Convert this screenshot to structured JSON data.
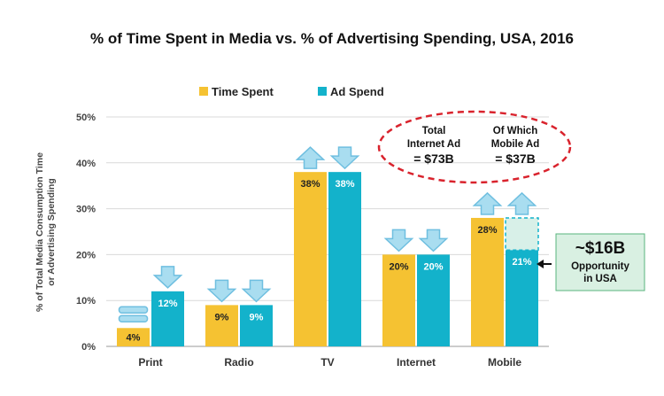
{
  "chart_data": {
    "type": "bar",
    "title": "% of Time Spent in Media vs. % of Advertising Spending, USA, 2016",
    "ylabel_lines": [
      "% of Total Media Consumption Time",
      "or Advertising Spending"
    ],
    "xlabel": "",
    "categories": [
      "Print",
      "Radio",
      "TV",
      "Internet",
      "Mobile"
    ],
    "series": [
      {
        "name": "Time Spent",
        "values": [
          4,
          9,
          38,
          20,
          28
        ],
        "labels": [
          "4%",
          "9%",
          "38%",
          "20%",
          "28%"
        ],
        "color": "#F5C232"
      },
      {
        "name": "Ad Spend",
        "values": [
          12,
          9,
          38,
          20,
          21
        ],
        "labels": [
          "12%",
          "9%",
          "38%",
          "20%",
          "21%"
        ],
        "color": "#13B2CB"
      }
    ],
    "ylim": [
      0,
      50
    ],
    "yticks": [
      0,
      10,
      20,
      30,
      40,
      50
    ],
    "ytick_labels": [
      "0%",
      "10%",
      "20%",
      "30%",
      "40%",
      "50%"
    ],
    "grid": true,
    "legend_position": "top",
    "trend_arrows": {
      "Time Spent": [
        "flat",
        "down",
        "up",
        "down",
        "up"
      ],
      "Ad Spend": [
        "down",
        "down",
        "down",
        "down",
        "up"
      ]
    },
    "mobile_ad_spend_gap_top": 28,
    "oval_callout": [
      {
        "lines": [
          "Total",
          "Internet Ad",
          "= $73B"
        ]
      },
      {
        "lines": [
          "Of Which",
          "Mobile Ad",
          "= $37B"
        ]
      }
    ],
    "opportunity_callout": {
      "amount": "~$16B",
      "lines": [
        "Opportunity",
        "in USA"
      ]
    }
  },
  "colors": {
    "time_spent": "#F5C232",
    "ad_spend": "#13B2CB",
    "arrow_fill": "#A9DDF0",
    "arrow_stroke": "#6FBFE0",
    "oval": "#D9232D",
    "callout_bg": "#D9F0E2",
    "callout_border": "#59B47E"
  }
}
